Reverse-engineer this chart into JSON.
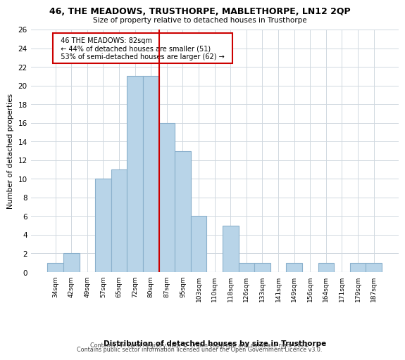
{
  "title": "46, THE MEADOWS, TRUSTHORPE, MABLETHORPE, LN12 2QP",
  "subtitle": "Size of property relative to detached houses in Trusthorpe",
  "xlabel": "Distribution of detached houses by size in Trusthorpe",
  "ylabel": "Number of detached properties",
  "bar_labels": [
    "34sqm",
    "42sqm",
    "49sqm",
    "57sqm",
    "65sqm",
    "72sqm",
    "80sqm",
    "87sqm",
    "95sqm",
    "103sqm",
    "110sqm",
    "118sqm",
    "126sqm",
    "133sqm",
    "141sqm",
    "149sqm",
    "156sqm",
    "164sqm",
    "171sqm",
    "179sqm",
    "187sqm"
  ],
  "bar_values": [
    1,
    2,
    0,
    10,
    11,
    21,
    21,
    16,
    13,
    6,
    0,
    5,
    1,
    1,
    0,
    1,
    0,
    1,
    0,
    1,
    1
  ],
  "bar_color": "#b8d4e8",
  "bar_edgecolor": "#8ab0cc",
  "vline_x": 6.5,
  "vline_color": "#cc0000",
  "annotation_title": "46 THE MEADOWS: 82sqm",
  "annotation_line1": "← 44% of detached houses are smaller (51)",
  "annotation_line2": "53% of semi-detached houses are larger (62) →",
  "annotation_box_edgecolor": "#cc0000",
  "ylim": [
    0,
    26
  ],
  "yticks": [
    0,
    2,
    4,
    6,
    8,
    10,
    12,
    14,
    16,
    18,
    20,
    22,
    24,
    26
  ],
  "footer_line1": "Contains HM Land Registry data © Crown copyright and database right 2024.",
  "footer_line2": "Contains public sector information licensed under the Open Government Licence v3.0.",
  "bg_color": "#ffffff",
  "grid_color": "#d0d8e0"
}
